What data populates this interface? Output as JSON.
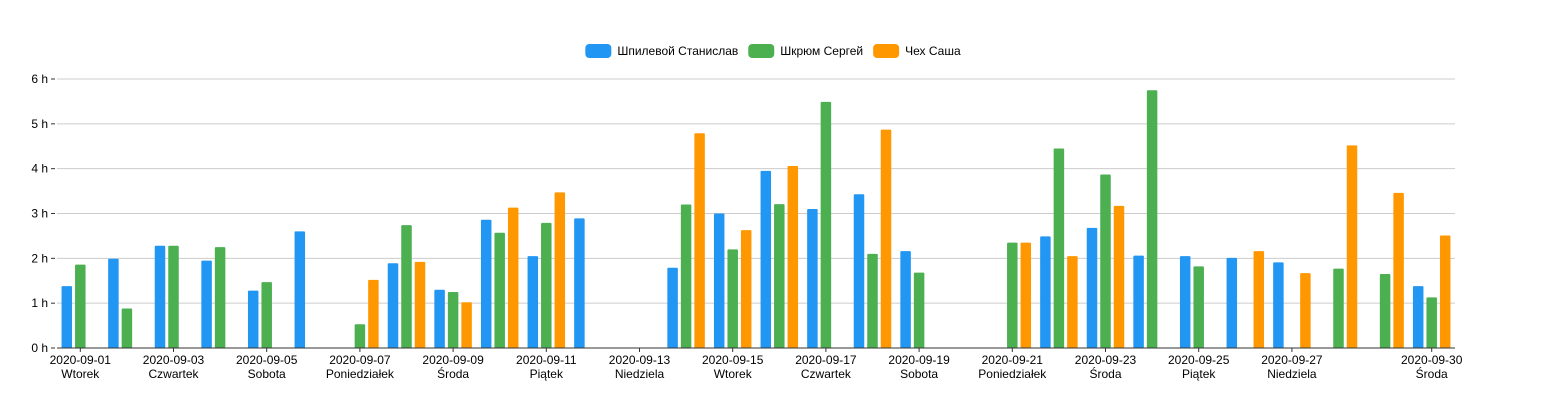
{
  "chart_data": {
    "type": "bar",
    "title": "",
    "xlabel": "",
    "ylabel": "",
    "ylim": [
      0,
      6
    ],
    "yticks": [
      0,
      1,
      2,
      3,
      4,
      5,
      6
    ],
    "y_unit_suffix": " h",
    "grid": true,
    "legend_position": "top-center",
    "dates": [
      "2020-09-01",
      "2020-09-02",
      "2020-09-03",
      "2020-09-04",
      "2020-09-05",
      "2020-09-06",
      "2020-09-07",
      "2020-09-08",
      "2020-09-09",
      "2020-09-10",
      "2020-09-11",
      "2020-09-12",
      "2020-09-13",
      "2020-09-14",
      "2020-09-15",
      "2020-09-16",
      "2020-09-17",
      "2020-09-18",
      "2020-09-19",
      "2020-09-20",
      "2020-09-21",
      "2020-09-22",
      "2020-09-23",
      "2020-09-24",
      "2020-09-25",
      "2020-09-26",
      "2020-09-27",
      "2020-09-28",
      "2020-09-29",
      "2020-09-30"
    ],
    "x_tick_labels": [
      {
        "date": "2020-09-01",
        "day": "Wtorek"
      },
      {
        "date": "2020-09-03",
        "day": "Czwartek"
      },
      {
        "date": "2020-09-05",
        "day": "Sobota"
      },
      {
        "date": "2020-09-07",
        "day": "Poniedziałek"
      },
      {
        "date": "2020-09-09",
        "day": "Środa"
      },
      {
        "date": "2020-09-11",
        "day": "Piątek"
      },
      {
        "date": "2020-09-13",
        "day": "Niedziela"
      },
      {
        "date": "2020-09-15",
        "day": "Wtorek"
      },
      {
        "date": "2020-09-17",
        "day": "Czwartek"
      },
      {
        "date": "2020-09-19",
        "day": "Sobota"
      },
      {
        "date": "2020-09-21",
        "day": "Poniedziałek"
      },
      {
        "date": "2020-09-23",
        "day": "Środa"
      },
      {
        "date": "2020-09-25",
        "day": "Piątek"
      },
      {
        "date": "2020-09-27",
        "day": "Niedziela"
      },
      {
        "date": "2020-09-30",
        "day": "Środa"
      }
    ],
    "series": [
      {
        "name": "Шпилевой Станислав",
        "color": "#2196f3",
        "values": [
          1.38,
          1.99,
          2.28,
          1.95,
          1.28,
          2.6,
          0,
          1.89,
          1.3,
          2.86,
          2.05,
          2.89,
          0,
          1.79,
          3.0,
          3.95,
          3.1,
          3.43,
          2.16,
          0,
          0,
          2.49,
          2.68,
          2.06,
          2.05,
          2.01,
          1.91,
          0,
          0,
          1.38
        ]
      },
      {
        "name": "Шкрюм Сергей",
        "color": "#4caf50",
        "values": [
          1.86,
          0.88,
          2.28,
          2.25,
          1.47,
          0,
          0.53,
          2.74,
          1.25,
          2.57,
          2.79,
          0,
          0,
          3.2,
          2.2,
          3.21,
          5.49,
          2.1,
          1.68,
          0,
          2.35,
          4.45,
          3.87,
          5.75,
          1.82,
          0,
          0,
          1.77,
          1.65,
          1.13
        ]
      },
      {
        "name": "Чех Саша",
        "color": "#ff9800",
        "values": [
          0,
          0,
          0,
          0,
          0,
          0,
          1.52,
          1.92,
          1.02,
          3.13,
          3.47,
          0,
          0,
          4.79,
          2.63,
          4.06,
          0,
          4.87,
          0,
          0,
          2.35,
          2.05,
          3.17,
          0,
          0,
          2.16,
          1.67,
          4.52,
          3.46,
          2.51
        ]
      }
    ]
  }
}
